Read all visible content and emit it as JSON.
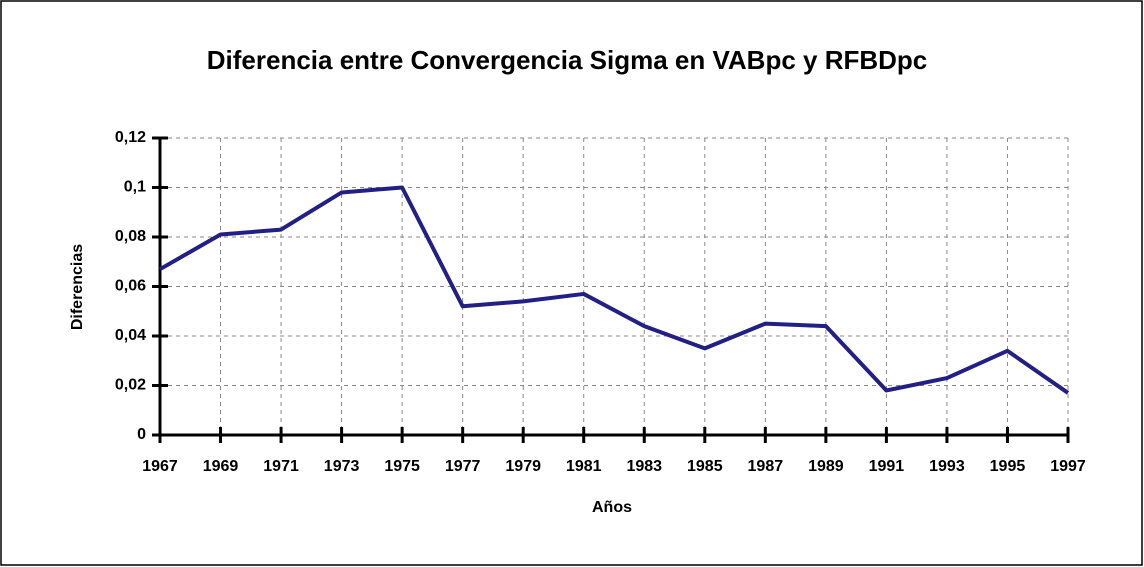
{
  "chart_data": {
    "type": "line",
    "title": "Diferencia entre Convergencia Sigma en VABpc y RFBDpc",
    "x_label": "Años",
    "y_label": "Diferencias",
    "categories": [
      "1967",
      "1969",
      "1971",
      "1973",
      "1975",
      "1977",
      "1979",
      "1981",
      "1983",
      "1985",
      "1987",
      "1989",
      "1991",
      "1993",
      "1995",
      "1997"
    ],
    "series": [
      {
        "name": "Diferencias",
        "color": "#221f85",
        "values": [
          0.067,
          0.081,
          0.083,
          0.098,
          0.1,
          0.052,
          0.054,
          0.057,
          0.044,
          0.035,
          0.045,
          0.044,
          0.018,
          0.023,
          0.034,
          0.017
        ]
      }
    ],
    "ylim": [
      0,
      0.12
    ],
    "yticks": [
      0,
      {
        "value": 0.02,
        "label": "0,02"
      },
      {
        "value": 0.04,
        "label": "0,04"
      },
      {
        "value": 0.06,
        "label": "0,06"
      },
      {
        "value": 0.08,
        "label": "0,08"
      },
      {
        "value": 0.1,
        "label": "0,1"
      },
      {
        "value": 0.12,
        "label": "0,12"
      }
    ],
    "grid": true
  }
}
